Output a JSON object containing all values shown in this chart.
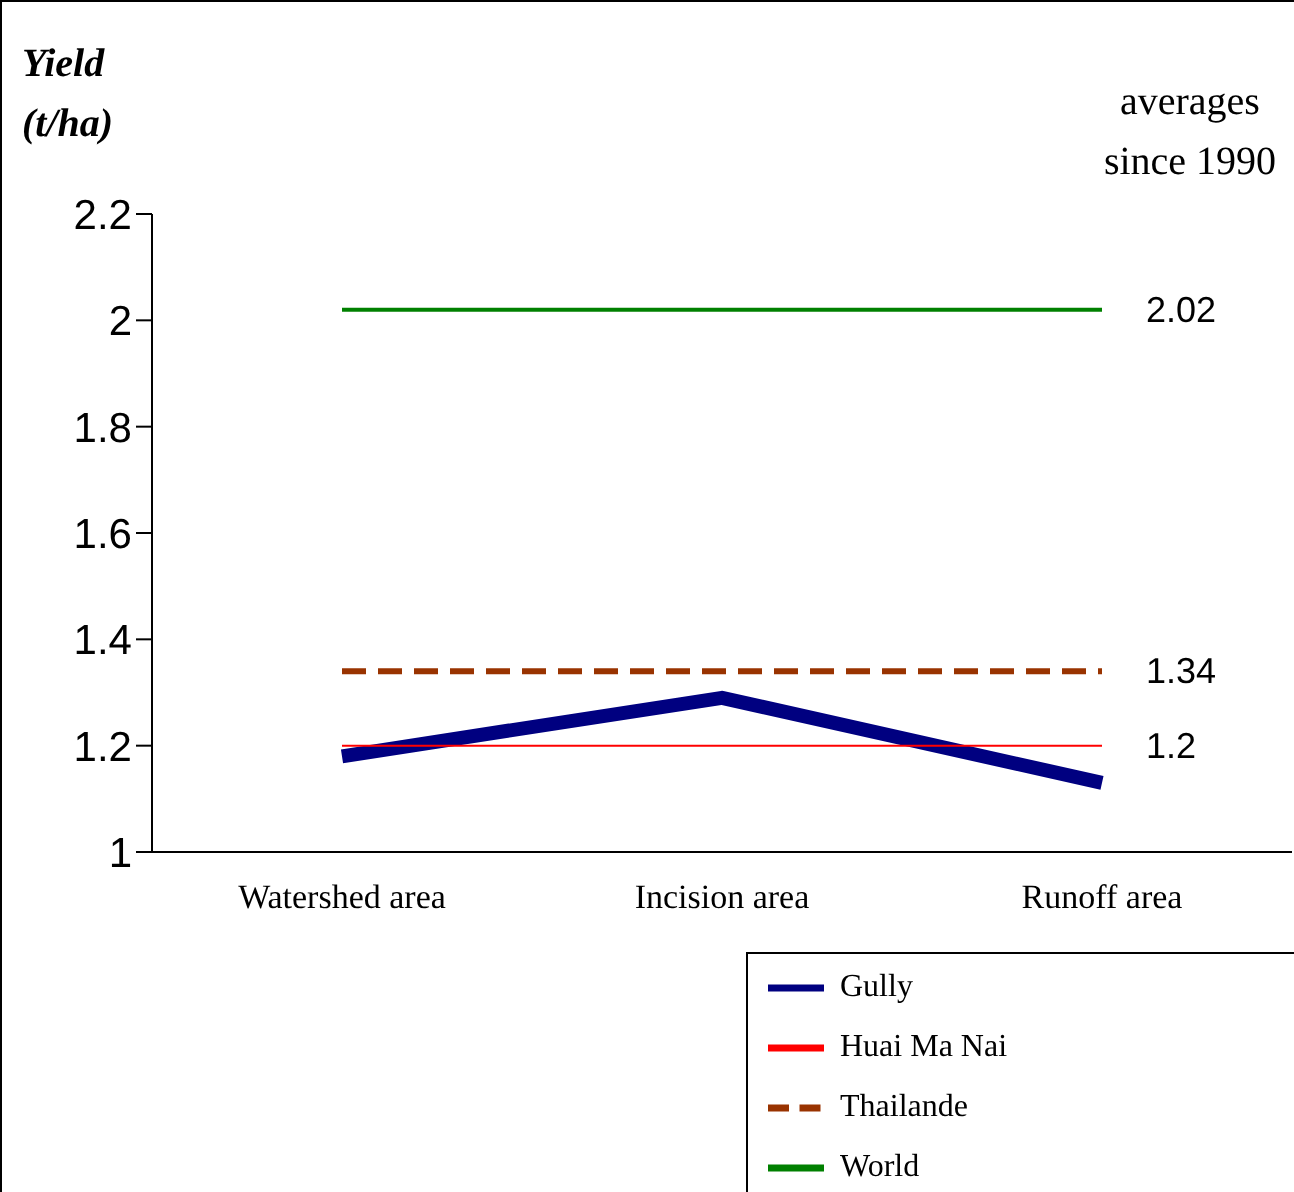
{
  "chart_data": {
    "type": "line",
    "ylabel": "Yield (t/ha)",
    "annotations": [
      "averages since 1990"
    ],
    "categories": [
      "Watershed area",
      "Incision area",
      "Runoff area"
    ],
    "series": [
      {
        "name": "Gully",
        "color": "#000080",
        "values": [
          1.18,
          1.29,
          1.13
        ]
      },
      {
        "name": "Huai Ma Nai",
        "color": "#ff0000",
        "values": [
          1.2,
          1.2,
          1.2
        ],
        "value_labels": [
          null,
          null,
          "1.2"
        ]
      },
      {
        "name": "World",
        "color": "#008000",
        "values": [
          2.02,
          2.02,
          2.02
        ],
        "value_labels": [
          null,
          null,
          "2.02"
        ]
      },
      {
        "name": "Thailande",
        "color": "#993300",
        "values": [
          1.34,
          1.34,
          1.34
        ],
        "value_labels": [
          null,
          null,
          "1.34"
        ],
        "line_style": "dashed"
      }
    ],
    "ylim": [
      1,
      2.2
    ],
    "yticks": [
      1,
      1.2,
      1.4,
      1.6,
      1.8,
      2,
      2.2
    ],
    "grid": false,
    "legend": "bottom right",
    "marker": "none"
  }
}
